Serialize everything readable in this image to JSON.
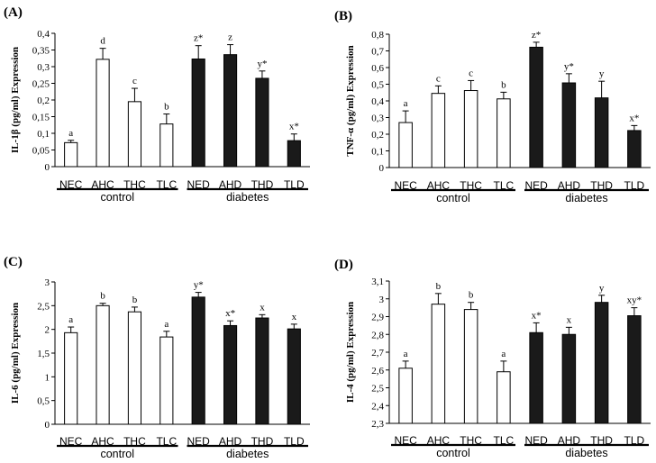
{
  "chart_data": [
    {
      "type": "bar",
      "panel": "(A)",
      "ylabel": "IL-1β (pg/ml) Expression",
      "ylim": [
        0,
        0.4
      ],
      "yticks": [
        "0",
        "0,05",
        "0,1",
        "0,15",
        "0,2",
        "0,25",
        "0,3",
        "0,35",
        "0,4"
      ],
      "categories": [
        "NEC",
        "AHC",
        "THC",
        "TLC",
        "NED",
        "AHD",
        "THD",
        "TLD"
      ],
      "values": [
        0.072,
        0.322,
        0.195,
        0.128,
        0.323,
        0.336,
        0.265,
        0.078
      ],
      "errors": [
        0.007,
        0.033,
        0.04,
        0.03,
        0.04,
        0.03,
        0.022,
        0.02
      ],
      "labels": [
        "a",
        "d",
        "c",
        "b",
        "z*",
        "z",
        "y*",
        "x*"
      ],
      "fill": [
        "open",
        "open",
        "open",
        "open",
        "filled",
        "filled",
        "filled",
        "filled"
      ],
      "groups": [
        "control",
        "diabetes"
      ]
    },
    {
      "type": "bar",
      "panel": "(B)",
      "ylabel": "TNF-α (pg/ml) Expression",
      "ylim": [
        0,
        0.8
      ],
      "yticks": [
        "0",
        "0,1",
        "0,2",
        "0,3",
        "0,4",
        "0,5",
        "0,6",
        "0,7",
        "0,8"
      ],
      "categories": [
        "NEC",
        "AHC",
        "THC",
        "TLC",
        "NED",
        "AHD",
        "THD",
        "TLD"
      ],
      "values": [
        0.27,
        0.445,
        0.462,
        0.412,
        0.722,
        0.508,
        0.418,
        0.222
      ],
      "errors": [
        0.07,
        0.045,
        0.06,
        0.04,
        0.03,
        0.055,
        0.1,
        0.03
      ],
      "labels": [
        "a",
        "c",
        "c",
        "b",
        "z*",
        "y*",
        "y",
        "x*"
      ],
      "fill": [
        "open",
        "open",
        "open",
        "open",
        "filled",
        "filled",
        "filled",
        "filled"
      ],
      "groups": [
        "control",
        "diabetes"
      ]
    },
    {
      "type": "bar",
      "panel": "(C)",
      "ylabel": "IL-6 (pg/ml) Expression",
      "ylim": [
        0,
        3
      ],
      "yticks": [
        "0",
        "0,5",
        "1",
        "1,5",
        "2",
        "2,5",
        "3"
      ],
      "categories": [
        "NEC",
        "AHC",
        "THC",
        "TLC",
        "NED",
        "AHD",
        "THD",
        "TLD"
      ],
      "values": [
        1.93,
        2.5,
        2.37,
        1.84,
        2.68,
        2.08,
        2.24,
        2.01
      ],
      "errors": [
        0.12,
        0.05,
        0.1,
        0.12,
        0.1,
        0.1,
        0.07,
        0.1
      ],
      "labels": [
        "a",
        "b",
        "b",
        "a",
        "y*",
        "x*",
        "x",
        "x"
      ],
      "fill": [
        "open",
        "open",
        "open",
        "open",
        "filled",
        "filled",
        "filled",
        "filled"
      ],
      "groups": [
        "control",
        "diabetes"
      ]
    },
    {
      "type": "bar",
      "panel": "(D)",
      "ylabel": "IL-4 (pg/ml) Expression",
      "ylim": [
        2.3,
        3.1
      ],
      "yticks": [
        "2,3",
        "2,4",
        "2,5",
        "2,6",
        "2,7",
        "2,8",
        "2,9",
        "3",
        "3,1"
      ],
      "categories": [
        "NEC",
        "AHC",
        "THC",
        "TLC",
        "NED",
        "AHD",
        "THD",
        "TLD"
      ],
      "values": [
        2.61,
        2.97,
        2.94,
        2.59,
        2.81,
        2.8,
        2.98,
        2.905
      ],
      "errors": [
        0.04,
        0.06,
        0.04,
        0.06,
        0.055,
        0.04,
        0.04,
        0.045
      ],
      "labels": [
        "a",
        "b",
        "b",
        "a",
        "x*",
        "x",
        "y",
        "xy*"
      ],
      "fill": [
        "open",
        "open",
        "open",
        "open",
        "filled",
        "filled",
        "filled",
        "filled"
      ],
      "groups": [
        "control",
        "diabetes"
      ]
    }
  ]
}
